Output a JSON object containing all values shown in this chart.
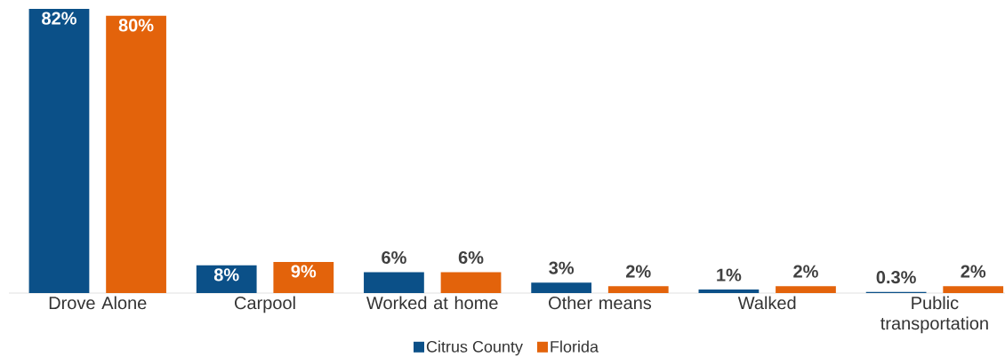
{
  "chart_data": {
    "type": "bar",
    "categories": [
      "Drove Alone",
      "Carpool",
      "Worked at home",
      "Other means",
      "Walked",
      "Public transportation"
    ],
    "series": [
      {
        "name": "Citrus County",
        "color": "#0b5088",
        "values": [
          82,
          8,
          6,
          3,
          1,
          0.3
        ],
        "value_labels": [
          "82%",
          "8%",
          "6%",
          "3%",
          "1%",
          "0.3%"
        ]
      },
      {
        "name": "Florida",
        "color": "#e3630b",
        "values": [
          80,
          9,
          6,
          2,
          2,
          2
        ],
        "value_labels": [
          "80%",
          "9%",
          "6%",
          "2%",
          "2%",
          "2%"
        ]
      }
    ],
    "legend": "bottom"
  }
}
